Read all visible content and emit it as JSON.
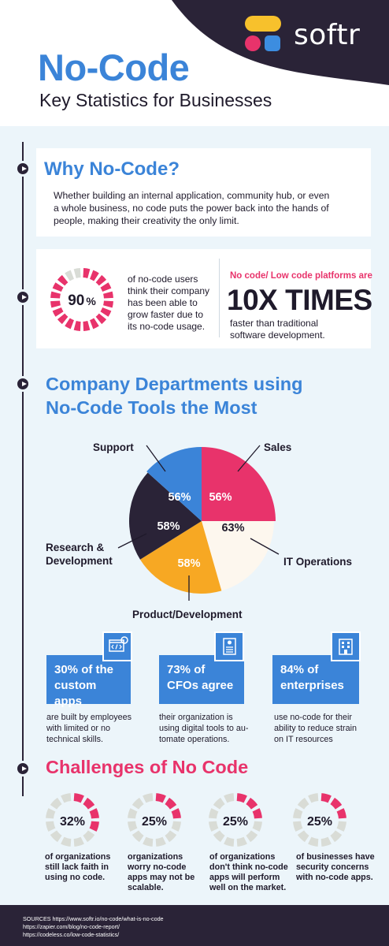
{
  "brand": {
    "logo_text": "softr",
    "colors": {
      "dark": "#2a2337",
      "blue": "#3b84d8",
      "pink": "#e8336b",
      "yellow": "#f7c12c",
      "cream": "#fdf7ee",
      "bg": "#ecf5fa"
    }
  },
  "header": {
    "title": "No-Code",
    "subtitle": "Key Statistics for Businesses"
  },
  "why": {
    "title": "Why No-Code?",
    "text": "Whether building an internal application, community hub, or even a whole business, no code puts the power back into the hands of people, making their creativity the only limit."
  },
  "growth": {
    "percent_value": 90,
    "percent_number": "90",
    "percent_sign": "%",
    "text": "of no-code users think their company has been able to grow faster due to its no-code usage.",
    "speed_heading": "No code/ Low code platforms are",
    "speed_big": "10X TIMES",
    "speed_sub": "faster than traditional software development."
  },
  "departments": {
    "title_line1": "Company Departments using",
    "title_line2": "No-Code Tools the Most",
    "labels": {
      "support": "Support",
      "sales": "Sales",
      "research_line1": "Research &",
      "research_line2": "Development",
      "it": "IT Operations",
      "product": "Product/Development"
    }
  },
  "chart_data": {
    "type": "pie",
    "categories": [
      "Sales",
      "IT Operations",
      "Product/Development",
      "Research & Development",
      "Support"
    ],
    "values": [
      56,
      63,
      58,
      58,
      56
    ],
    "value_labels": [
      "56%",
      "63%",
      "58%",
      "58%",
      "56%"
    ],
    "colors": [
      "#e8336b",
      "#fdf7ee",
      "#f7a823",
      "#2a2337",
      "#3b84d8"
    ]
  },
  "facts": [
    {
      "line1": "30% of the",
      "line2": "custom apps",
      "icon": "code-window-gear-icon",
      "desc": [
        "are built by employees",
        "with limited or no",
        "technical skills."
      ]
    },
    {
      "line1": "73% of",
      "line2": "CFOs agree",
      "icon": "document-person-icon",
      "desc": [
        "their organization is",
        "using digital tools to au-",
        "tomate operations."
      ]
    },
    {
      "line1": "84% of",
      "line2": "enterprises",
      "icon": "building-icon",
      "desc": [
        "use no-code for their",
        "ability to reduce strain",
        "on IT resources"
      ]
    }
  ],
  "challenges": {
    "title": "Challenges of No Code",
    "items": [
      {
        "value": 32,
        "label": "32%",
        "desc": [
          "of organizations",
          "still lack faith in",
          "using no code."
        ]
      },
      {
        "value": 25,
        "label": "25%",
        "desc": [
          "organizations",
          "worry no-code",
          "apps may not be",
          "scalable."
        ]
      },
      {
        "value": 25,
        "label": "25%",
        "desc": [
          "of organizations",
          "don't think no-code",
          "apps will perform",
          "well on the market."
        ]
      },
      {
        "value": 25,
        "label": "25%",
        "desc": [
          "of businesses have",
          "security concerns",
          "with no-code apps."
        ]
      }
    ]
  },
  "sources": {
    "line1": "SOURCES https://www.softr.io/no-code/what-is-no-code",
    "line2": "https://zapier.com/blog/no-code-report/",
    "line3": "https://codeless.co/low-code-statistics/"
  }
}
